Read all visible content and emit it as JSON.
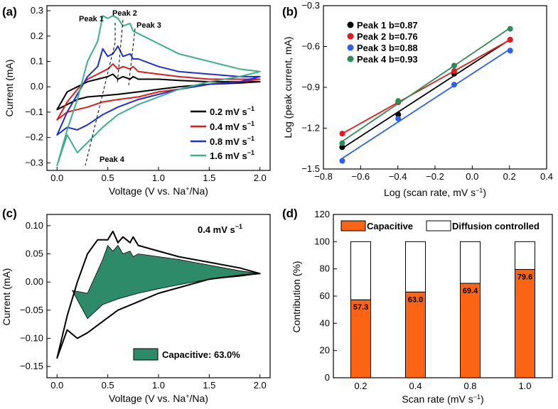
{
  "chart_data": [
    {
      "panel": "(a)",
      "type": "line",
      "xlabel": "Voltage (V vs. Na+/Na)",
      "ylabel": "Current (mA)",
      "xlim": [
        -0.1,
        2.1
      ],
      "ylim": [
        -0.33,
        0.32
      ],
      "xticks": [
        "0.0",
        "0.5",
        "1.0",
        "1.5",
        "2.0"
      ],
      "yticks": [
        "-0.3",
        "-0.2",
        "-0.1",
        "0.0",
        "0.1",
        "0.2",
        "0.3"
      ],
      "legend_position": "bottom-right",
      "annotations": [
        "Peak 1",
        "Peak 2",
        "Peak 3",
        "Peak 4"
      ],
      "series": [
        {
          "name": "0.2 mV s-1",
          "color": "#000000",
          "x": [
            0.0,
            0.1,
            0.2,
            0.3,
            0.4,
            0.5,
            0.55,
            0.6,
            0.65,
            0.72,
            0.75,
            0.8,
            1.0,
            1.2,
            1.5,
            1.8,
            2.0,
            1.8,
            1.5,
            1.2,
            1.0,
            0.8,
            0.6,
            0.45,
            0.3,
            0.2,
            0.1,
            0.0
          ],
          "y": [
            -0.09,
            -0.02,
            0.0,
            0.02,
            0.03,
            0.04,
            0.05,
            0.03,
            0.04,
            0.03,
            0.04,
            0.03,
            0.03,
            0.025,
            0.02,
            0.02,
            0.02,
            0.015,
            0.01,
            0.0,
            -0.01,
            -0.02,
            -0.03,
            -0.035,
            -0.04,
            -0.05,
            -0.07,
            -0.09
          ]
        },
        {
          "name": "0.4 mV s-1",
          "color": "#e41a1c",
          "x": [
            0.0,
            0.1,
            0.2,
            0.3,
            0.4,
            0.5,
            0.55,
            0.6,
            0.65,
            0.72,
            0.75,
            0.8,
            1.0,
            1.2,
            1.5,
            1.8,
            2.0,
            1.8,
            1.5,
            1.2,
            1.0,
            0.8,
            0.6,
            0.45,
            0.3,
            0.2,
            0.1,
            0.0
          ],
          "y": [
            -0.13,
            -0.06,
            -0.01,
            0.03,
            0.05,
            0.07,
            0.09,
            0.07,
            0.08,
            0.07,
            0.08,
            0.06,
            0.05,
            0.04,
            0.03,
            0.03,
            0.03,
            0.02,
            0.01,
            -0.01,
            -0.02,
            -0.04,
            -0.05,
            -0.06,
            -0.08,
            -0.09,
            -0.1,
            -0.13
          ]
        },
        {
          "name": "0.8 mV s-1",
          "color": "#1f2fd6",
          "x": [
            0.0,
            0.1,
            0.2,
            0.3,
            0.4,
            0.45,
            0.5,
            0.55,
            0.6,
            0.65,
            0.72,
            0.75,
            0.8,
            1.0,
            1.2,
            1.5,
            1.8,
            2.0,
            1.8,
            1.5,
            1.2,
            1.0,
            0.8,
            0.6,
            0.45,
            0.3,
            0.2,
            0.1,
            0.0
          ],
          "y": [
            -0.19,
            -0.1,
            -0.03,
            0.04,
            0.08,
            0.15,
            0.12,
            0.13,
            0.16,
            0.12,
            0.13,
            0.11,
            0.11,
            0.08,
            0.06,
            0.05,
            0.04,
            0.04,
            0.02,
            0.01,
            -0.01,
            -0.03,
            -0.05,
            -0.08,
            -0.11,
            -0.15,
            -0.17,
            -0.16,
            -0.19
          ]
        },
        {
          "name": "1.6 mV s-1",
          "color": "#3fae8c",
          "x": [
            0.0,
            0.1,
            0.2,
            0.3,
            0.4,
            0.45,
            0.5,
            0.55,
            0.6,
            0.65,
            0.72,
            0.75,
            0.8,
            1.0,
            1.2,
            1.5,
            1.8,
            2.0,
            1.8,
            1.5,
            1.2,
            1.0,
            0.8,
            0.6,
            0.45,
            0.3,
            0.2,
            0.1,
            0.0
          ],
          "y": [
            -0.31,
            -0.17,
            -0.05,
            0.1,
            0.18,
            0.28,
            0.27,
            0.28,
            0.27,
            0.24,
            0.25,
            0.22,
            0.21,
            0.17,
            0.13,
            0.1,
            0.07,
            0.06,
            0.04,
            0.02,
            -0.01,
            -0.04,
            -0.07,
            -0.11,
            -0.16,
            -0.22,
            -0.26,
            -0.19,
            -0.31
          ]
        }
      ]
    },
    {
      "panel": "(b)",
      "type": "scatter",
      "xlabel": "Log (scan rate, mV s-1)",
      "ylabel": "Log (peak current, mA)",
      "xlim": [
        -0.8,
        0.4
      ],
      "ylim": [
        -1.5,
        -0.3
      ],
      "xticks": [
        "-0.8",
        "-0.6",
        "-0.4",
        "-0.2",
        "0.0",
        "0.2",
        "0.4"
      ],
      "yticks": [
        "-1.5",
        "-1.2",
        "-0.9",
        "-0.6",
        "-0.3"
      ],
      "x": [
        -0.699,
        -0.398,
        -0.097,
        0.204
      ],
      "legend_position": "top-left",
      "series": [
        {
          "name": "Peak 1 b=0.87",
          "color": "#000000",
          "values": [
            -1.34,
            -1.1,
            -0.8,
            -0.55
          ]
        },
        {
          "name": "Peak 2 b=0.76",
          "color": "#e41a1c",
          "values": [
            -1.24,
            -1.01,
            -0.78,
            -0.55
          ]
        },
        {
          "name": "Peak 3 b=0.88",
          "color": "#2b5ff0",
          "values": [
            -1.44,
            -1.13,
            -0.88,
            -0.63
          ]
        },
        {
          "name": "Peak 4 b=0.93",
          "color": "#2e8b57",
          "values": [
            -1.31,
            -1.0,
            -0.74,
            -0.47
          ]
        }
      ]
    },
    {
      "panel": "(c)",
      "type": "area",
      "xlabel": "Voltage (V vs. Na+/Na)",
      "ylabel": "Current (mA)",
      "xlim": [
        -0.1,
        2.1
      ],
      "ylim": [
        -0.17,
        0.12
      ],
      "xticks": [
        "0.0",
        "0.5",
        "1.0",
        "1.5",
        "2.0"
      ],
      "yticks": [
        "-0.15",
        "-0.10",
        "-0.05",
        "0.00",
        "0.05",
        "0.10"
      ],
      "annotation": "0.4 mV s-1",
      "legend_entry": "Capacitive: 63.0%",
      "fill_color": "#2e8b6a",
      "series": [
        {
          "name": "Total CV",
          "x": [
            0.0,
            0.1,
            0.2,
            0.3,
            0.4,
            0.5,
            0.55,
            0.6,
            0.65,
            0.72,
            0.75,
            0.8,
            1.0,
            1.2,
            1.5,
            1.8,
            2.0,
            1.8,
            1.5,
            1.2,
            1.0,
            0.8,
            0.6,
            0.45,
            0.3,
            0.2,
            0.1,
            0.0
          ],
          "y": [
            -0.135,
            -0.06,
            0.0,
            0.05,
            0.075,
            0.075,
            0.09,
            0.07,
            0.08,
            0.07,
            0.08,
            0.065,
            0.055,
            0.045,
            0.035,
            0.025,
            0.015,
            0.012,
            0.005,
            -0.01,
            -0.02,
            -0.035,
            -0.05,
            -0.07,
            -0.09,
            -0.1,
            -0.085,
            -0.135
          ]
        },
        {
          "name": "Capacitive",
          "x": [
            0.15,
            0.3,
            0.4,
            0.45,
            0.5,
            0.55,
            0.6,
            0.65,
            0.72,
            0.75,
            0.8,
            1.0,
            1.2,
            1.5,
            1.8,
            2.0,
            1.8,
            1.5,
            1.2,
            1.0,
            0.8,
            0.6,
            0.45,
            0.3,
            0.15
          ],
          "y": [
            -0.015,
            -0.02,
            0.02,
            0.04,
            0.065,
            0.055,
            0.065,
            0.05,
            0.055,
            0.045,
            0.05,
            0.045,
            0.04,
            0.03,
            0.02,
            0.015,
            0.01,
            0.005,
            -0.005,
            -0.012,
            -0.02,
            -0.03,
            -0.04,
            -0.065,
            -0.015
          ]
        }
      ]
    },
    {
      "panel": "(d)",
      "type": "bar",
      "xlabel": "Scan rate (mV s-1)",
      "ylabel": "Contribution (%)",
      "ylim": [
        0,
        120
      ],
      "yticks": [
        "0",
        "20",
        "40",
        "60",
        "80",
        "100",
        "120"
      ],
      "categories": [
        "0.2",
        "0.4",
        "0.8",
        "1.0"
      ],
      "legend_position": "top",
      "series": [
        {
          "name": "Capacitive",
          "color": "#fb6315",
          "values": [
            57.3,
            63.0,
            69.4,
            79.6
          ]
        },
        {
          "name": "Diffusion controlled",
          "color": "#ffffff",
          "values": [
            42.7,
            37.0,
            30.6,
            20.4
          ]
        }
      ],
      "data_labels": [
        "57.3",
        "63.0",
        "69.4",
        "79.6"
      ]
    }
  ],
  "text": {
    "panel_a": "(a)",
    "panel_b": "(b)",
    "panel_c": "(c)",
    "panel_d": "(d)",
    "peak1": "Peak 1",
    "peak2": "Peak 2",
    "peak3": "Peak 3",
    "peak4": "Peak 4",
    "a_leg": [
      "0.2 mV s",
      "0.4 mV s",
      "0.8 mV s",
      "1.6 mV s"
    ],
    "sup_m1": "−1",
    "a_xlabel_pre": "Voltage (V vs. Na",
    "a_xlabel_sup": "+",
    "a_xlabel_post": "/Na)",
    "a_ylabel": "Current (mA)",
    "b_xlabel_pre": "Log (scan rate, mV s",
    "b_xlabel_sup": "−1",
    "b_xlabel_post": ")",
    "b_ylabel": "Log (peak current, mA)",
    "b_leg": [
      "Peak 1 b=0.87",
      "Peak 2 b=0.76",
      "Peak 3 b=0.88",
      "Peak 4 b=0.93"
    ],
    "c_annot_pre": "0.4 mV s",
    "c_annot_sup": "−1",
    "c_leg": "Capacitive: 63.0%",
    "c_ylabel": "Current (mA)",
    "d_leg1": "Capacitive",
    "d_leg2": "Diffusion controlled",
    "d_xlabel_pre": "Scan rate (mV s",
    "d_xlabel_sup": "−1",
    "d_xlabel_post": ")",
    "d_ylabel": "Contribution (%)"
  }
}
